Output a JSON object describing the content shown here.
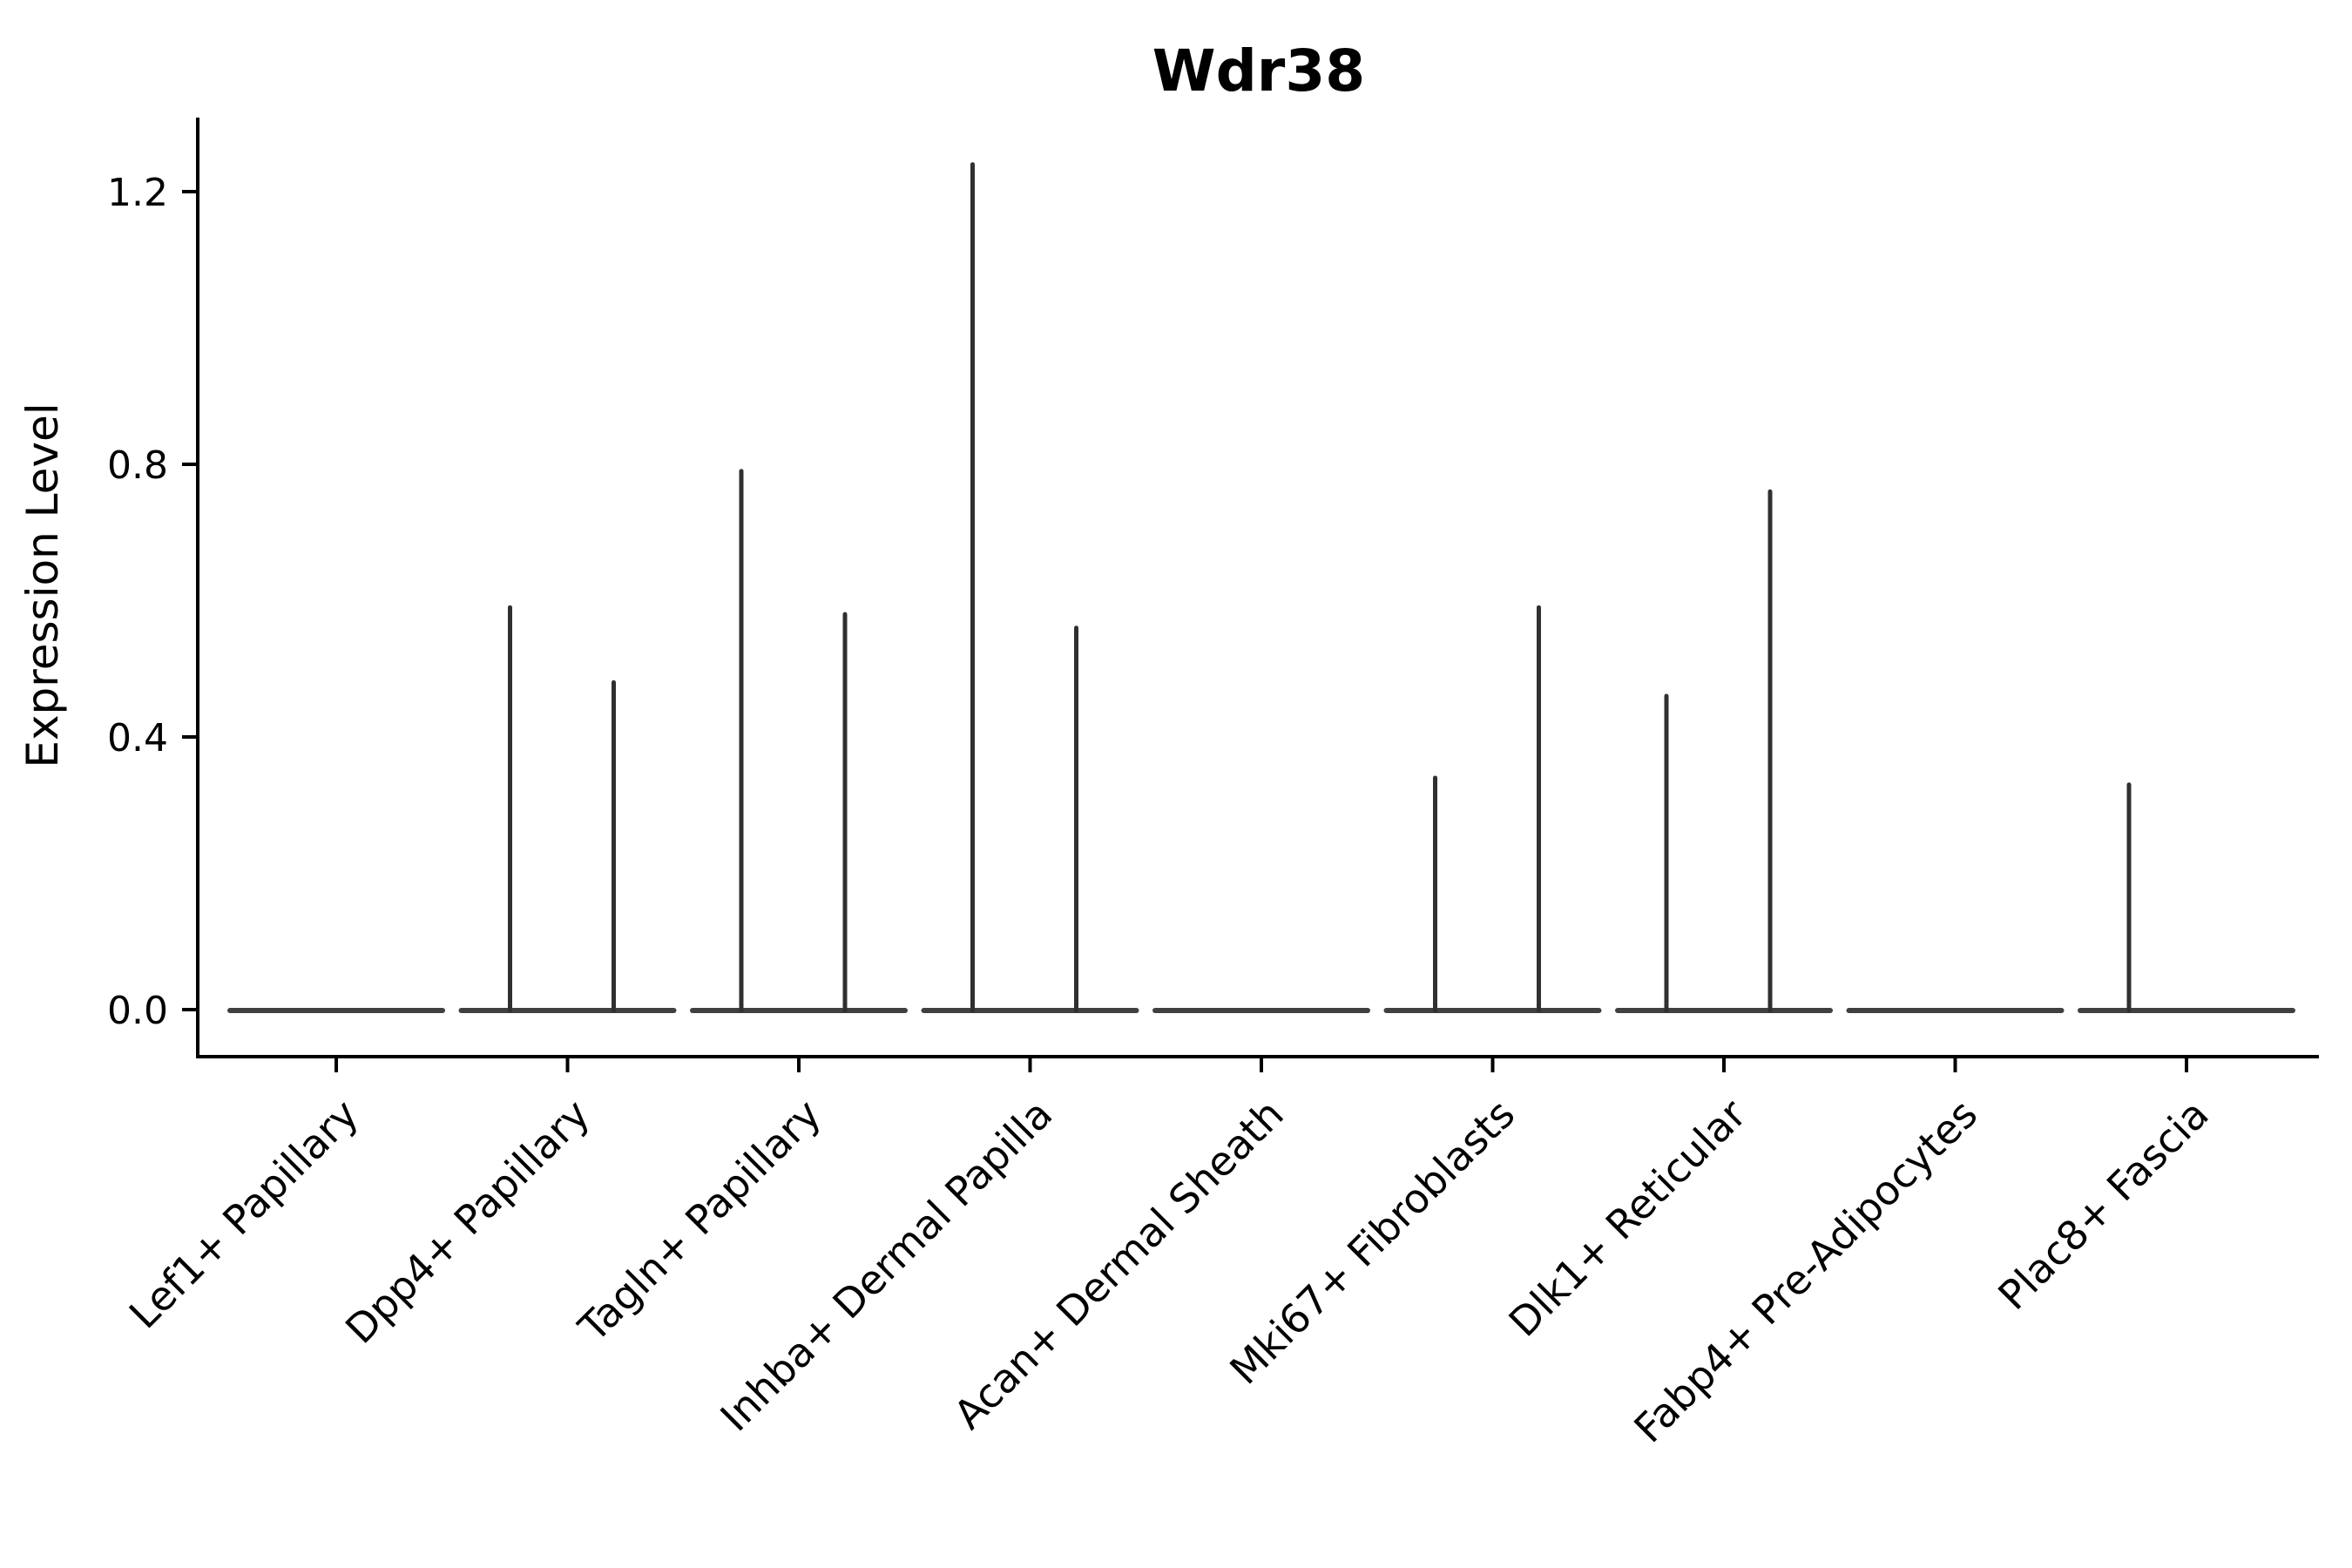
{
  "chart_data": {
    "type": "violin",
    "title": "Wdr38",
    "ylabel": "Expression Level",
    "xlabel": "",
    "grid": false,
    "legend_position": "none",
    "ytick_labels": [
      "0.0",
      "0.4",
      "0.8",
      "1.2"
    ],
    "ytick_values": [
      0.0,
      0.4,
      0.8,
      1.2
    ],
    "ylim": [
      -0.07,
      1.31
    ],
    "violins_per_category": 2,
    "baseline_value": 0.0,
    "categories": [
      "Lef1+ Papillary",
      "Dpp4+ Papillary",
      "Tagln+ Papillary",
      "Inhba+ Dermal Papilla",
      "Acan+ Dermal Sheath",
      "Mki67+ Fibroblasts",
      "Dlk1+ Reticular",
      "Fabp4+ Pre-Adipocytes",
      "Plac8+ Fascia"
    ],
    "series": [
      {
        "category": "Lef1+ Papillary",
        "spikes": []
      },
      {
        "category": "Dpp4+ Papillary",
        "spikes": [
          {
            "side": "left",
            "max": 0.59
          },
          {
            "side": "right",
            "max": 0.48
          }
        ]
      },
      {
        "category": "Tagln+ Papillary",
        "spikes": [
          {
            "side": "left",
            "max": 0.79
          },
          {
            "side": "right",
            "max": 0.58
          }
        ]
      },
      {
        "category": "Inhba+ Dermal Papilla",
        "spikes": [
          {
            "side": "left",
            "max": 1.24
          },
          {
            "side": "right",
            "max": 0.56
          }
        ]
      },
      {
        "category": "Acan+ Dermal Sheath",
        "spikes": []
      },
      {
        "category": "Mki67+ Fibroblasts",
        "spikes": [
          {
            "side": "left",
            "max": 0.34
          },
          {
            "side": "right",
            "max": 0.59
          }
        ]
      },
      {
        "category": "Dlk1+ Reticular",
        "spikes": [
          {
            "side": "left",
            "max": 0.46
          },
          {
            "side": "right",
            "max": 0.76
          }
        ]
      },
      {
        "category": "Fabp4+ Pre-Adipocytes",
        "spikes": []
      },
      {
        "category": "Plac8+ Fascia",
        "spikes": [
          {
            "side": "left",
            "max": 0.33
          }
        ]
      }
    ],
    "colors": {
      "violin_line": "#303030",
      "axis": "#000000",
      "text": "#000000",
      "background": "#ffffff"
    }
  }
}
